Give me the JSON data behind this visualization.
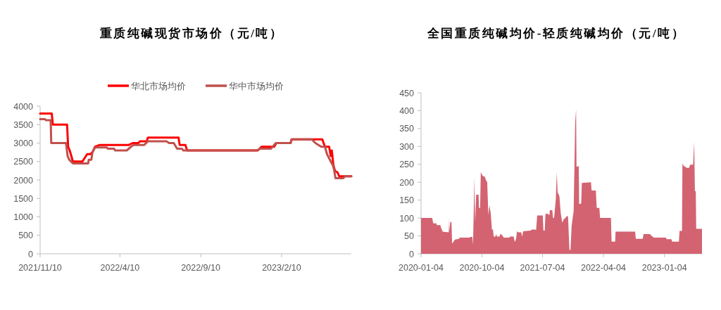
{
  "chart_data": [
    {
      "type": "line",
      "title": "重质纯碱现货市场价（元/吨）",
      "legend": "top",
      "grid": false,
      "marker": "none",
      "line_style": "solid",
      "xlim": [
        "2021-11-10",
        "2023-06-22"
      ],
      "xticks": [
        {
          "value": "2021-11-10",
          "label": "2021/11/10"
        },
        {
          "value": "2022-04-10",
          "label": "2022/4/10"
        },
        {
          "value": "2022-09-10",
          "label": "2022/9/10"
        },
        {
          "value": "2023-02-10",
          "label": "2023/2/10"
        }
      ],
      "ylim": [
        0,
        4000
      ],
      "yticks": [
        0,
        500,
        1000,
        1500,
        2000,
        2500,
        3000,
        3500,
        4000
      ],
      "series": [
        {
          "name": "华北市场均价",
          "color": "#ff0000",
          "x": [
            "2021-11-10",
            "2021-12-02",
            "2021-12-04",
            "2021-12-31",
            "2022-01-02",
            "2022-01-05",
            "2022-01-11",
            "2022-01-29",
            "2022-02-07",
            "2022-02-13",
            "2022-02-17",
            "2022-02-22",
            "2022-03-03",
            "2022-04-27",
            "2022-05-04",
            "2022-05-15",
            "2022-05-18",
            "2022-05-31",
            "2022-06-02",
            "2022-07-30",
            "2022-08-01",
            "2022-08-12",
            "2022-08-15",
            "2022-12-27",
            "2023-01-03",
            "2023-01-27",
            "2023-01-31",
            "2023-02-27",
            "2023-03-01",
            "2023-04-28",
            "2023-05-03",
            "2023-05-11",
            "2023-05-14",
            "2023-05-16",
            "2023-05-19",
            "2023-05-22",
            "2023-05-27",
            "2023-05-30",
            "2023-06-22"
          ],
          "values": [
            3800,
            3800,
            3500,
            3500,
            2900,
            2800,
            2500,
            2500,
            2700,
            2700,
            2750,
            2900,
            2950,
            2950,
            3000,
            3000,
            3050,
            3050,
            3150,
            3150,
            2950,
            2950,
            2800,
            2800,
            2900,
            2900,
            3000,
            3000,
            3100,
            3100,
            2900,
            2900,
            2650,
            2800,
            2400,
            2250,
            2200,
            2100,
            2100
          ]
        },
        {
          "name": "华中市场均价",
          "color": "#c0504d",
          "x": [
            "2021-11-10",
            "2021-11-19",
            "2021-11-21",
            "2021-11-30",
            "2021-12-01",
            "2021-12-29",
            "2022-01-01",
            "2022-01-04",
            "2022-01-11",
            "2022-02-09",
            "2022-02-10",
            "2022-02-15",
            "2022-02-17",
            "2022-02-22",
            "2022-03-16",
            "2022-03-18",
            "2022-03-30",
            "2022-04-01",
            "2022-04-23",
            "2022-05-01",
            "2022-05-06",
            "2022-05-26",
            "2022-06-02",
            "2022-07-07",
            "2022-07-12",
            "2022-07-21",
            "2022-07-27",
            "2022-08-05",
            "2022-08-08",
            "2022-12-25",
            "2023-01-01",
            "2023-01-21",
            "2023-01-30",
            "2023-02-27",
            "2023-03-01",
            "2023-04-08",
            "2023-04-15",
            "2023-04-26",
            "2023-05-03",
            "2023-05-07",
            "2023-05-14",
            "2023-05-18",
            "2023-05-20",
            "2023-05-23",
            "2023-06-07",
            "2023-06-10",
            "2023-06-22"
          ],
          "values": [
            3650,
            3650,
            3620,
            3620,
            3000,
            3000,
            2650,
            2550,
            2450,
            2450,
            2550,
            2550,
            2750,
            2880,
            2880,
            2850,
            2850,
            2800,
            2800,
            2900,
            2950,
            2950,
            3050,
            3050,
            3000,
            3000,
            2850,
            2850,
            2800,
            2800,
            2850,
            2850,
            3000,
            3000,
            3100,
            3100,
            3000,
            2900,
            2900,
            2700,
            2500,
            2400,
            2300,
            2050,
            2050,
            2100,
            2100
          ]
        }
      ]
    },
    {
      "type": "area",
      "title": "全国重质纯碱均价-轻质纯碱均价（元/吨）",
      "grid": false,
      "xlim": [
        "2020-01-04",
        "2023-06-22"
      ],
      "xticks": [
        "2020-01-04",
        "2020-10-04",
        "2021-07-04",
        "2022-04-04",
        "2023-01-04"
      ],
      "ylim": [
        0,
        450
      ],
      "yticks": [
        0,
        50,
        100,
        150,
        200,
        250,
        300,
        350,
        400,
        450
      ],
      "series": [
        {
          "color": "#d36371",
          "x": [
            "2020-01-04",
            "2020-02-23",
            "2020-02-28",
            "2020-03-13",
            "2020-03-15",
            "2020-03-31",
            "2020-04-03",
            "2020-04-07",
            "2020-04-10",
            "2020-05-07",
            "2020-05-08",
            "2020-05-09",
            "2020-05-15",
            "2020-05-20",
            "2020-05-23",
            "2020-05-30",
            "2020-06-05",
            "2020-06-23",
            "2020-06-26",
            "2020-08-10",
            "2020-08-13",
            "2020-08-22",
            "2020-08-25",
            "2020-08-29",
            "2020-08-31",
            "2020-09-02",
            "2020-09-04",
            "2020-09-08",
            "2020-09-19",
            "2020-09-21",
            "2020-09-26",
            "2020-09-29",
            "2020-10-07",
            "2020-10-17",
            "2020-10-23",
            "2020-10-28",
            "2020-11-02",
            "2020-11-07",
            "2020-11-13",
            "2020-11-18",
            "2020-11-23",
            "2020-11-26",
            "2020-12-04",
            "2020-12-07",
            "2020-12-11",
            "2020-12-23",
            "2020-12-25",
            "2021-01-02",
            "2021-01-10",
            "2021-02-05",
            "2021-02-07",
            "2021-02-24",
            "2021-03-01",
            "2021-03-07",
            "2021-03-11",
            "2021-03-17",
            "2021-03-30",
            "2021-04-03",
            "2021-04-08",
            "2021-05-11",
            "2021-05-17",
            "2021-06-01",
            "2021-06-05",
            "2021-06-10",
            "2021-07-05",
            "2021-07-08",
            "2021-07-14",
            "2021-07-17",
            "2021-07-24",
            "2021-07-30",
            "2021-08-04",
            "2021-08-06",
            "2021-08-17",
            "2021-08-20",
            "2021-08-25",
            "2021-08-28",
            "2021-09-02",
            "2021-09-06",
            "2021-09-10",
            "2021-09-15",
            "2021-09-18",
            "2021-09-24",
            "2021-10-01",
            "2021-10-08",
            "2021-10-15",
            "2021-10-22",
            "2021-10-27",
            "2021-11-02",
            "2021-11-07",
            "2021-11-12",
            "2021-11-18",
            "2021-11-21",
            "2021-11-28",
            "2021-12-02",
            "2021-12-04",
            "2021-12-14",
            "2021-12-16",
            "2021-12-25",
            "2021-12-28",
            "2022-02-07",
            "2022-02-10",
            "2022-03-01",
            "2022-03-05",
            "2022-03-17",
            "2022-03-20",
            "2022-05-08",
            "2022-05-11",
            "2022-05-27",
            "2022-05-29",
            "2022-08-25",
            "2022-08-28",
            "2022-09-28",
            "2022-10-02",
            "2022-11-01",
            "2022-11-03",
            "2022-11-17",
            "2023-01-10",
            "2023-01-14",
            "2023-02-04",
            "2023-02-08",
            "2023-03-10",
            "2023-03-13",
            "2023-03-24",
            "2023-03-26",
            "2023-03-31",
            "2023-04-14",
            "2023-04-25",
            "2023-04-30",
            "2023-05-13",
            "2023-05-18",
            "2023-05-21",
            "2023-05-25",
            "2023-05-27",
            "2023-06-22"
          ],
          "values": [
            100,
            100,
            85,
            85,
            80,
            80,
            72,
            68,
            62,
            60,
            102,
            60,
            90,
            88,
            28,
            35,
            40,
            42,
            45,
            45,
            47,
            47,
            25,
            145,
            215,
            140,
            90,
            165,
            165,
            128,
            128,
            228,
            218,
            215,
            205,
            200,
            108,
            135,
            112,
            68,
            68,
            48,
            48,
            55,
            48,
            48,
            55,
            53,
            45,
            45,
            48,
            48,
            33,
            42,
            63,
            60,
            60,
            48,
            63,
            65,
            68,
            68,
            66,
            107,
            107,
            65,
            65,
            110,
            113,
            110,
            108,
            122,
            122,
            100,
            100,
            120,
            154,
            228,
            172,
            165,
            160,
            113,
            87,
            97,
            100,
            106,
            103,
            11,
            11,
            77,
            106,
            118,
            366,
            405,
            243,
            245,
            139,
            140,
            198,
            200,
            177,
            177,
            128,
            128,
            100,
            100,
            34,
            34,
            62,
            62,
            42,
            42,
            55,
            55,
            52,
            45,
            45,
            41,
            41,
            34,
            34,
            64,
            64,
            253,
            246,
            240,
            240,
            249,
            249,
            313,
            175,
            175,
            70,
            70
          ]
        }
      ]
    }
  ]
}
